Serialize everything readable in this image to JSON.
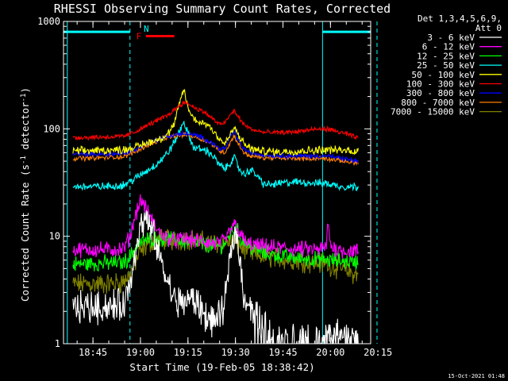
{
  "chart_data": {
    "type": "line",
    "title": "RHESSI Observing Summary Count Rates, Corrected",
    "xlabel": "Start Time (19-Feb-05 18:38:42)",
    "ylabel": "Corrected Count Rate (s⁻¹ detector⁻¹)",
    "ylabel_parts": {
      "main": "Corrected Count Rate (s",
      "sup1": "-1",
      "mid": " detector",
      "sup2": "-1",
      "end": ")"
    },
    "xlim": [
      -3,
      94
    ],
    "ylim": [
      1,
      1000
    ],
    "yscale": "log",
    "x_ticks": [
      {
        "value": 6.3,
        "label": "18:45"
      },
      {
        "value": 21.3,
        "label": "19:00"
      },
      {
        "value": 36.3,
        "label": "19:15"
      },
      {
        "value": 51.3,
        "label": "19:30"
      },
      {
        "value": 66.3,
        "label": "19:45"
      },
      {
        "value": 81.3,
        "label": "20:00"
      },
      {
        "value": 96.3,
        "label": "20:15"
      }
    ],
    "y_ticks": [
      {
        "value": 1,
        "label": "1"
      },
      {
        "value": 10,
        "label": "10"
      },
      {
        "value": 100,
        "label": "100"
      },
      {
        "value": 1000,
        "label": "1000"
      }
    ],
    "legend_header": [
      "Det 1,3,4,5,6,9,",
      "Att 0"
    ],
    "legend_position": "right",
    "series": [
      {
        "name": "3 - 6 keV",
        "color": "#ffffff",
        "x": [
          0,
          10,
          16,
          18,
          19.5,
          21,
          23,
          25,
          27,
          29,
          31,
          33,
          35,
          38,
          40,
          42,
          44,
          46,
          48,
          49.5,
          51,
          52.5,
          54,
          56,
          58,
          60,
          62,
          65,
          70,
          75,
          80,
          85,
          90
        ],
        "values": [
          2.2,
          2.2,
          2.3,
          3.5,
          7,
          12,
          14,
          11,
          7,
          4.5,
          3,
          2.4,
          2.5,
          2.6,
          2.2,
          1.8,
          1.6,
          1.7,
          2.4,
          6,
          12,
          7,
          2.8,
          2.2,
          1.8,
          1.5,
          1.3,
          1.2,
          1.1,
          1.1,
          1.2,
          1.15,
          1.1
        ]
      },
      {
        "name": "6 - 12 keV",
        "color": "#ff00ff",
        "x": [
          0,
          10,
          16,
          18,
          20,
          21.5,
          23,
          25,
          27,
          29,
          32,
          35,
          40,
          45,
          48,
          50,
          51.5,
          53,
          55,
          60,
          70,
          78,
          80,
          80.5,
          81.5,
          85,
          90
        ],
        "values": [
          7.5,
          7.5,
          7.6,
          10,
          17,
          22,
          18,
          14,
          11,
          10,
          9,
          9.5,
          9,
          8.5,
          9,
          12,
          13,
          10,
          8.5,
          8,
          7.6,
          7.5,
          8,
          13,
          8,
          7.4,
          7.2
        ]
      },
      {
        "name": "12 - 25 keV",
        "color": "#00ff00",
        "x": [
          0,
          10,
          16,
          18,
          20,
          22,
          25,
          30,
          35,
          40,
          45,
          48,
          50,
          51.5,
          53,
          56,
          60,
          70,
          80,
          90
        ],
        "values": [
          5.5,
          5.6,
          5.7,
          6.5,
          8,
          9,
          9.5,
          9.5,
          9,
          8.5,
          8,
          8.5,
          11,
          12,
          9.5,
          8,
          7,
          6.3,
          6,
          5.8
        ]
      },
      {
        "name": "25 - 50 keV",
        "color": "#00ffff",
        "x": [
          0,
          10,
          16,
          20,
          24,
          26,
          28,
          30,
          32,
          34,
          35,
          36,
          37,
          38,
          39,
          40,
          42,
          44,
          46,
          48,
          50,
          51,
          52,
          54,
          56,
          58,
          60,
          62,
          65,
          70,
          80,
          85,
          90
        ],
        "values": [
          29,
          29,
          30,
          35,
          42,
          46,
          52,
          60,
          75,
          100,
          118,
          95,
          80,
          68,
          66,
          65,
          63,
          57,
          47,
          42,
          50,
          54,
          45,
          37,
          42,
          37,
          31,
          30,
          31,
          32,
          31,
          29,
          29
        ]
      },
      {
        "name": "50 - 100 keV",
        "color": "#ffff00",
        "x": [
          0,
          10,
          16,
          20,
          24,
          28,
          30,
          32,
          34,
          35,
          36,
          37,
          38,
          39,
          40,
          42,
          44,
          46,
          48,
          50,
          51,
          52,
          54,
          56,
          58,
          60,
          65,
          70,
          80,
          90
        ],
        "values": [
          62,
          63,
          64,
          68,
          75,
          82,
          90,
          110,
          190,
          235,
          170,
          140,
          125,
          120,
          115,
          112,
          100,
          82,
          72,
          92,
          102,
          90,
          72,
          66,
          63,
          62,
          61,
          62,
          64,
          62
        ]
      },
      {
        "name": "100 - 300 keV",
        "color": "#ff0000",
        "x": [
          0,
          10,
          16,
          20,
          24,
          28,
          30,
          32,
          34,
          36,
          38,
          40,
          42,
          44,
          46,
          48,
          50,
          51,
          52,
          54,
          56,
          58,
          60,
          65,
          70,
          75,
          80,
          85,
          90
        ],
        "values": [
          83,
          84,
          85,
          95,
          110,
          125,
          135,
          150,
          170,
          175,
          160,
          150,
          140,
          125,
          110,
          115,
          138,
          148,
          130,
          110,
          100,
          96,
          93,
          92,
          94,
          98,
          100,
          92,
          82
        ]
      },
      {
        "name": "300 - 800 keV",
        "color": "#0000ff",
        "x": [
          0,
          10,
          16,
          20,
          24,
          28,
          32,
          36,
          40,
          44,
          46,
          48,
          50,
          51,
          52,
          54,
          56,
          60,
          70,
          80,
          90
        ],
        "values": [
          58,
          58,
          59,
          65,
          75,
          82,
          88,
          90,
          85,
          74,
          66,
          65,
          88,
          95,
          80,
          65,
          60,
          57,
          56,
          56,
          50
        ]
      },
      {
        "name": "800 - 7000 keV",
        "color": "#ff8000",
        "x": [
          0,
          10,
          16,
          20,
          24,
          28,
          32,
          36,
          40,
          44,
          46,
          48,
          50,
          51,
          52,
          54,
          56,
          60,
          70,
          80,
          90
        ],
        "values": [
          53,
          54,
          55,
          62,
          72,
          80,
          86,
          88,
          82,
          72,
          63,
          60,
          78,
          86,
          74,
          60,
          56,
          54,
          53,
          53,
          48
        ]
      },
      {
        "name": "7000 - 15000 keV",
        "color": "#808000",
        "x": [
          0,
          10,
          15,
          17,
          19,
          21,
          23,
          25,
          28,
          32,
          36,
          40,
          45,
          50,
          53,
          56,
          60,
          70,
          80,
          85,
          90
        ],
        "values": [
          3.6,
          3.6,
          3.7,
          4,
          5.2,
          7,
          8,
          9,
          9.5,
          9,
          9.5,
          9,
          8.5,
          9,
          8,
          7,
          6.5,
          6,
          5.5,
          5,
          4.3
        ]
      }
    ],
    "annotations": [
      {
        "type": "bar",
        "label": "",
        "x_start": -3,
        "x_end": 18,
        "level": 800,
        "color": "#00ffff"
      },
      {
        "type": "bar",
        "label": "",
        "x_start": 78.8,
        "x_end": 94,
        "level": 800,
        "color": "#00ffff"
      },
      {
        "type": "bar",
        "label": "F",
        "x_start": 23,
        "x_end": 32,
        "level": 730,
        "color": "#ff0000"
      },
      {
        "type": "label",
        "label": "N",
        "x": 21.3,
        "level": 840,
        "color": "#00ffff"
      },
      {
        "type": "vline",
        "label": "",
        "x": -1.8,
        "color": "#00ffff",
        "dash": false
      },
      {
        "type": "vline",
        "label": "",
        "x": 18,
        "color": "#00ffff",
        "dash": true
      },
      {
        "type": "vline",
        "label": "",
        "x": 78.8,
        "color": "#00ffff",
        "dash": false
      },
      {
        "type": "vline",
        "label": "",
        "x": 96,
        "color": "#00ffff",
        "dash": true
      }
    ]
  },
  "footer": {
    "timestamp": "15-Oct-2021 01:48"
  }
}
